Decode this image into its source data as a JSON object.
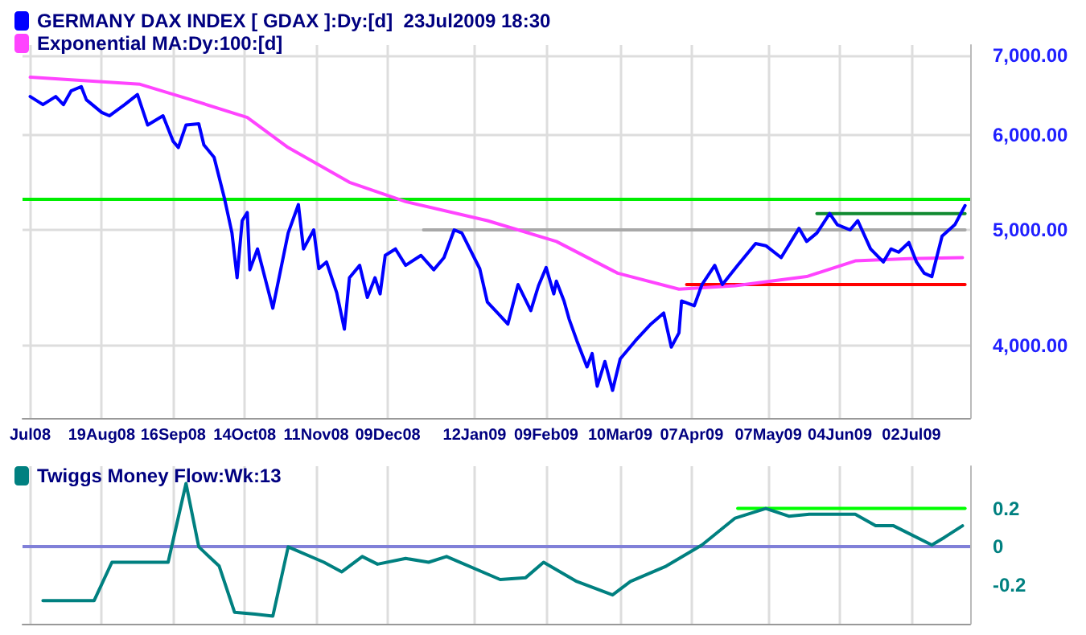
{
  "chart_data": [
    {
      "type": "line",
      "legend": "top left",
      "grid": true,
      "log": "y",
      "marker": "none",
      "xlim": [
        "2008-07-19",
        "2009-07-25"
      ],
      "ylim": [
        3480,
        7140
      ],
      "xticks": [
        {
          "value": "2008-07-22",
          "label": "Jul08"
        },
        {
          "value": "2008-08-19",
          "label": "19Aug08"
        },
        {
          "value": "2008-09-16",
          "label": "16Sep08"
        },
        {
          "value": "2008-10-14",
          "label": "14Oct08"
        },
        {
          "value": "2008-11-11",
          "label": "11Nov08"
        },
        {
          "value": "2008-12-09",
          "label": "09Dec08"
        },
        {
          "value": "2009-01-12",
          "label": "12Jan09"
        },
        {
          "value": "2009-02-09",
          "label": "09Feb09"
        },
        {
          "value": "2009-03-10",
          "label": "10Mar09"
        },
        {
          "value": "2009-04-07",
          "label": "07Apr09"
        },
        {
          "value": "2009-05-07",
          "label": "07May09"
        },
        {
          "value": "2009-06-04",
          "label": "04Jun09"
        },
        {
          "value": "2009-07-02",
          "label": "02Jul09"
        }
      ],
      "yticks": [
        {
          "value": 4000,
          "label": "4,000.00"
        },
        {
          "value": 5000,
          "label": "5,000.00"
        },
        {
          "value": 6000,
          "label": "6,000.00"
        },
        {
          "value": 7000,
          "label": "7,000.00"
        }
      ],
      "ref_lines": [
        {
          "axis": "y",
          "value": 5300,
          "color": "#00ee00"
        }
      ],
      "series": [
        {
          "name": "GERMANY DAX INDEX [ GDAX ]:Dy:[d]  23Jul2009 18:30",
          "color": "#0000ff",
          "x": [
            "2008-07-22",
            "2008-07-27",
            "2008-08-01",
            "2008-08-04",
            "2008-08-07",
            "2008-08-11",
            "2008-08-13",
            "2008-08-19",
            "2008-08-22",
            "2008-08-28",
            "2008-09-02",
            "2008-09-06",
            "2008-09-12",
            "2008-09-16",
            "2008-09-18",
            "2008-09-21",
            "2008-09-26",
            "2008-09-28",
            "2008-10-02",
            "2008-10-06",
            "2008-10-09",
            "2008-10-11",
            "2008-10-13",
            "2008-10-15",
            "2008-10-16",
            "2008-10-19",
            "2008-10-25",
            "2008-10-31",
            "2008-11-04",
            "2008-11-06",
            "2008-11-10",
            "2008-11-12",
            "2008-11-15",
            "2008-11-19",
            "2008-11-22",
            "2008-11-24",
            "2008-11-28",
            "2008-12-01",
            "2008-12-04",
            "2008-12-06",
            "2008-12-08",
            "2008-12-12",
            "2008-12-16",
            "2008-12-22",
            "2008-12-27",
            "2008-12-31",
            "2009-01-04",
            "2009-01-07",
            "2009-01-14",
            "2009-01-17",
            "2009-01-21",
            "2009-01-25",
            "2009-01-29",
            "2009-02-03",
            "2009-02-06",
            "2009-02-09",
            "2009-02-12",
            "2009-02-13",
            "2009-02-16",
            "2009-02-18",
            "2009-02-21",
            "2009-02-25",
            "2009-02-27",
            "2009-03-01",
            "2009-03-04",
            "2009-03-07",
            "2009-03-10",
            "2009-03-16",
            "2009-03-22",
            "2009-03-27",
            "2009-03-30",
            "2009-04-02",
            "2009-04-03",
            "2009-04-08",
            "2009-04-11",
            "2009-04-16",
            "2009-04-19",
            "2009-04-25",
            "2009-05-02",
            "2009-05-06",
            "2009-05-12",
            "2009-05-19",
            "2009-05-22",
            "2009-05-26",
            "2009-05-31",
            "2009-06-03",
            "2009-06-08",
            "2009-06-11",
            "2009-06-16",
            "2009-06-21",
            "2009-06-24",
            "2009-06-27",
            "2009-07-01",
            "2009-07-04",
            "2009-07-07",
            "2009-07-10",
            "2009-07-14",
            "2009-07-19",
            "2009-07-23"
          ],
          "values": [
            6465,
            6365,
            6465,
            6365,
            6535,
            6590,
            6425,
            6270,
            6230,
            6365,
            6490,
            6120,
            6230,
            5930,
            5860,
            6120,
            6135,
            5890,
            5750,
            5320,
            4970,
            4560,
            5090,
            5170,
            4630,
            4820,
            4300,
            4970,
            5250,
            4820,
            5000,
            4640,
            4700,
            4430,
            4130,
            4560,
            4670,
            4390,
            4560,
            4420,
            4760,
            4820,
            4670,
            4760,
            4630,
            4740,
            5000,
            4970,
            4640,
            4350,
            4260,
            4170,
            4500,
            4280,
            4490,
            4650,
            4420,
            4530,
            4360,
            4210,
            4040,
            3840,
            3940,
            3700,
            3880,
            3670,
            3900,
            4040,
            4170,
            4260,
            3990,
            4100,
            4360,
            4320,
            4500,
            4670,
            4500,
            4670,
            4870,
            4850,
            4740,
            5015,
            4890,
            4970,
            5160,
            5050,
            5000,
            5090,
            4820,
            4700,
            4820,
            4790,
            4880,
            4700,
            4600,
            4570,
            4940,
            5050,
            5240
          ]
        },
        {
          "name": "Exponential MA:Dy:100:[d]",
          "color": "#ff44ff",
          "x": [
            "2008-07-22",
            "2008-09-03",
            "2008-09-23",
            "2008-10-15",
            "2008-10-31",
            "2008-11-24",
            "2008-12-16",
            "2009-01-17",
            "2009-02-13",
            "2009-03-09",
            "2009-04-02",
            "2009-04-24",
            "2009-05-22",
            "2009-06-10",
            "2009-07-01",
            "2009-07-22"
          ],
          "values": [
            6710,
            6620,
            6425,
            6210,
            5860,
            5480,
            5280,
            5090,
            4890,
            4600,
            4460,
            4490,
            4570,
            4710,
            4730,
            4740
          ]
        },
        {
          "color": "#a8a8a8",
          "x": [
            "2008-12-23",
            "2009-07-23"
          ],
          "values": [
            5000,
            5000
          ]
        },
        {
          "color": "#108a30",
          "x": [
            "2009-05-26",
            "2009-07-23"
          ],
          "values": [
            5160,
            5160
          ]
        },
        {
          "color": "#ff0000",
          "x": [
            "2009-04-05",
            "2009-07-23"
          ],
          "values": [
            4500,
            4500
          ]
        }
      ]
    },
    {
      "type": "line",
      "legend": "top left",
      "grid": "x",
      "tick_labels": "y",
      "marker": "none",
      "xlim": [
        "2008-07-19",
        "2009-07-25"
      ],
      "ylim": [
        -0.4,
        0.42
      ],
      "xticks": [
        {
          "value": "2008-07-22",
          "label": null
        },
        {
          "value": "2008-08-19",
          "label": null
        },
        {
          "value": "2008-09-16",
          "label": null
        },
        {
          "value": "2008-10-14",
          "label": null
        },
        {
          "value": "2008-11-11",
          "label": null
        },
        {
          "value": "2008-12-09",
          "label": null
        },
        {
          "value": "2009-01-12",
          "label": null
        },
        {
          "value": "2009-02-09",
          "label": null
        },
        {
          "value": "2009-03-10",
          "label": null
        },
        {
          "value": "2009-04-07",
          "label": null
        },
        {
          "value": "2009-05-07",
          "label": null
        },
        {
          "value": "2009-06-04",
          "label": null
        },
        {
          "value": "2009-07-02",
          "label": null
        }
      ],
      "yticks": [
        {
          "value": -0.2,
          "label": "-0.2"
        },
        0,
        0.2
      ],
      "ref_lines": [
        {
          "axis": "y",
          "value": 0,
          "color": "#8080d8"
        }
      ],
      "series": [
        {
          "name": "Twiggs Money Flow:Wk:13",
          "color": "#008080",
          "x": [
            "2008-07-27",
            "2008-08-16",
            "2008-08-23",
            "2008-09-14",
            "2008-09-21",
            "2008-09-26",
            "2008-10-04",
            "2008-10-10",
            "2008-10-18",
            "2008-10-25",
            "2008-10-31",
            "2008-11-14",
            "2008-11-21",
            "2008-11-29",
            "2008-12-05",
            "2008-12-16",
            "2008-12-25",
            "2009-01-01",
            "2009-01-22",
            "2009-02-01",
            "2009-02-08",
            "2009-02-21",
            "2009-03-07",
            "2009-03-14",
            "2009-03-28",
            "2009-04-11",
            "2009-04-24",
            "2009-05-06",
            "2009-05-15",
            "2009-05-23",
            "2009-06-10",
            "2009-06-18",
            "2009-06-25",
            "2009-07-10",
            "2009-07-15",
            "2009-07-22"
          ],
          "values": [
            -0.28,
            -0.28,
            -0.08,
            -0.08,
            0.33,
            0.0,
            -0.1,
            -0.34,
            -0.35,
            -0.36,
            0.0,
            -0.08,
            -0.13,
            -0.05,
            -0.09,
            -0.06,
            -0.08,
            -0.05,
            -0.17,
            -0.16,
            -0.08,
            -0.18,
            -0.25,
            -0.18,
            -0.1,
            0.01,
            0.15,
            0.2,
            0.16,
            0.17,
            0.17,
            0.11,
            0.11,
            0.01,
            0.05,
            0.11
          ]
        },
        {
          "color": "#00ff00",
          "x": [
            "2009-04-25",
            "2009-07-23"
          ],
          "values": [
            0.2,
            0.2
          ]
        }
      ]
    }
  ]
}
